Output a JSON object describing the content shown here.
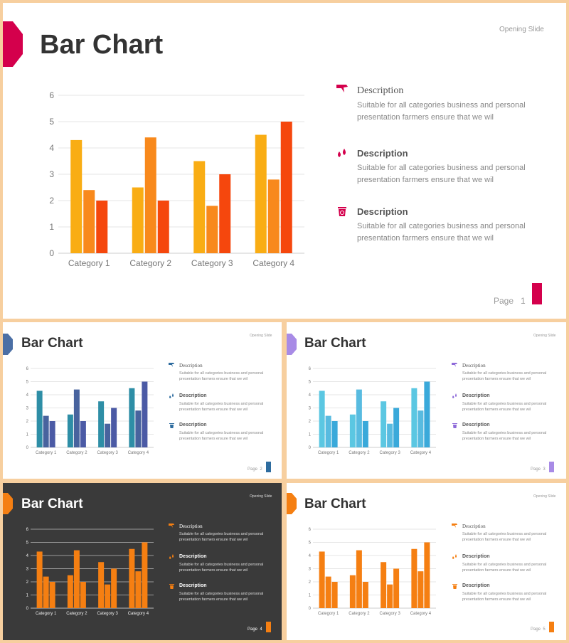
{
  "chart_data": [
    {
      "type": "bar",
      "categories": [
        "Category 1",
        "Category 2",
        "Category 3",
        "Category 4"
      ],
      "series": [
        {
          "values": [
            4.3,
            2.5,
            3.5,
            4.5
          ]
        },
        {
          "values": [
            2.4,
            4.4,
            1.8,
            2.8
          ]
        },
        {
          "values": [
            2.0,
            2.0,
            3.0,
            5.0
          ]
        }
      ],
      "yticks": [
        "0",
        "1",
        "2",
        "3",
        "4",
        "5",
        "6"
      ],
      "ylim": [
        0,
        6
      ],
      "grid": true,
      "colors": [
        "#f9ad14",
        "#f8891c",
        "#f5470d"
      ]
    },
    {
      "type": "bar",
      "categories": [
        "Category 1",
        "Category 2",
        "Category 3",
        "Category 4"
      ],
      "series": [
        {
          "values": [
            4.3,
            2.5,
            3.5,
            4.5
          ]
        },
        {
          "values": [
            2.4,
            4.4,
            1.8,
            2.8
          ]
        },
        {
          "values": [
            2.0,
            2.0,
            3.0,
            5.0
          ]
        }
      ],
      "yticks": [
        "0",
        "1",
        "2",
        "3",
        "4",
        "5",
        "6"
      ],
      "ylim": [
        0,
        6
      ],
      "grid": true,
      "colors": [
        "#2e8ea6",
        "#48639e",
        "#4b5aa5"
      ]
    },
    {
      "type": "bar",
      "categories": [
        "Category 1",
        "Category 2",
        "Category 3",
        "Category 4"
      ],
      "series": [
        {
          "values": [
            4.3,
            2.5,
            3.5,
            4.5
          ]
        },
        {
          "values": [
            2.4,
            4.4,
            1.8,
            2.8
          ]
        },
        {
          "values": [
            2.0,
            2.0,
            3.0,
            5.0
          ]
        }
      ],
      "yticks": [
        "0",
        "1",
        "2",
        "3",
        "4",
        "5",
        "6"
      ],
      "ylim": [
        0,
        6
      ],
      "grid": true,
      "colors": [
        "#5bc7e2",
        "#58bbe0",
        "#3aa9da"
      ]
    },
    {
      "type": "bar",
      "categories": [
        "Category 1",
        "Category 2",
        "Category 3",
        "Category 4"
      ],
      "series": [
        {
          "values": [
            4.3,
            2.5,
            3.5,
            4.5
          ]
        },
        {
          "values": [
            2.4,
            4.4,
            1.8,
            2.8
          ]
        },
        {
          "values": [
            2.0,
            2.0,
            3.0,
            5.0
          ]
        }
      ],
      "yticks": [
        "0",
        "1",
        "2",
        "3",
        "4",
        "5",
        "6"
      ],
      "ylim": [
        0,
        6
      ],
      "grid": true,
      "colors": [
        "#f57f12",
        "#f57f12",
        "#f57f12"
      ]
    },
    {
      "type": "bar",
      "categories": [
        "Category 1",
        "Category 2",
        "Category 3",
        "Category 4"
      ],
      "series": [
        {
          "values": [
            4.3,
            2.5,
            3.5,
            4.5
          ]
        },
        {
          "values": [
            2.4,
            4.4,
            1.8,
            2.8
          ]
        },
        {
          "values": [
            2.0,
            2.0,
            3.0,
            5.0
          ]
        }
      ],
      "yticks": [
        "0",
        "1",
        "2",
        "3",
        "4",
        "5",
        "6"
      ],
      "ylim": [
        0,
        6
      ],
      "grid": true,
      "colors": [
        "#f57f12",
        "#f57f12",
        "#f57f12"
      ]
    }
  ],
  "slides": [
    {
      "title": "Bar Chart",
      "opening": "Opening Slide",
      "page_word": "Page",
      "page_num": "1",
      "accent": "#d4004c",
      "descriptions": [
        {
          "icon": "speech-flag-icon",
          "heading": "Description",
          "text1": "Suitable for all categories business and personal",
          "text2": "presentation farmers ensure that we wil"
        },
        {
          "icon": "droplets-icon",
          "heading": "Description",
          "text1": "Suitable for all categories business and personal",
          "text2": "presentation farmers ensure that we wil"
        },
        {
          "icon": "recycle-bin-icon",
          "heading": "Description",
          "text1": "Suitable for all categories business and personal",
          "text2": "presentation farmers ensure that we wil"
        }
      ]
    },
    {
      "title": "Bar Chart",
      "opening": "Opening Slide",
      "page_word": "Page",
      "page_num": "2",
      "accent": "#2e6c9f",
      "tab": "#4b6fa5",
      "descriptions": [
        {
          "icon": "speech-flag-icon",
          "heading": "Description",
          "text1": "Suitable for all categories business and personal",
          "text2": "presentation farmers ensure that we wil"
        },
        {
          "icon": "droplets-icon",
          "heading": "Description",
          "text1": "Suitable for all categories business and personal",
          "text2": "presentation farmers ensure that we wil"
        },
        {
          "icon": "recycle-bin-icon",
          "heading": "Description",
          "text1": "Suitable for all categories business and personal",
          "text2": "presentation farmers ensure that we wil"
        }
      ]
    },
    {
      "title": "Bar Chart",
      "opening": "Opening Slide",
      "page_word": "Page",
      "page_num": "3",
      "accent": "#a88be6",
      "descriptions": [
        {
          "icon": "speech-flag-icon",
          "heading": "Description",
          "text1": "Suitable for all categories business and personal",
          "text2": "presentation farmers ensure that we wil"
        },
        {
          "icon": "droplets-icon",
          "heading": "Description",
          "text1": "Suitable for all categories business and personal",
          "text2": "presentation farmers ensure that we wil"
        },
        {
          "icon": "recycle-bin-icon",
          "heading": "Description",
          "text1": "Suitable for all categories business and personal",
          "text2": "presentation farmers ensure that we wil"
        }
      ]
    },
    {
      "title": "Bar Chart",
      "opening": "Opening Slide",
      "page_word": "Page",
      "page_num": "4",
      "accent": "#f57f12",
      "descriptions": [
        {
          "icon": "speech-flag-icon",
          "heading": "Description",
          "text1": "Suitable for all categories business and personal",
          "text2": "presentation farmers ensure that we wil"
        },
        {
          "icon": "droplets-icon",
          "heading": "Description",
          "text1": "Suitable for all categories business and personal",
          "text2": "presentation farmers ensure that we wil"
        },
        {
          "icon": "recycle-bin-icon",
          "heading": "Description",
          "text1": "Suitable for all categories business and personal",
          "text2": "presentation farmers ensure that we wil"
        }
      ]
    },
    {
      "title": "Bar Chart",
      "opening": "Opening Slide",
      "page_word": "Page",
      "page_num": "5",
      "accent": "#f57f12",
      "descriptions": [
        {
          "icon": "speech-flag-icon",
          "heading": "Description",
          "text1": "Suitable for all categories business and personal",
          "text2": "presentation farmers ensure that we wil"
        },
        {
          "icon": "droplets-icon",
          "heading": "Description",
          "text1": "Suitable for all categories business and personal",
          "text2": "presentation farmers ensure that we wil"
        },
        {
          "icon": "recycle-bin-icon",
          "heading": "Description",
          "text1": "Suitable for all categories business and personal",
          "text2": "presentation farmers ensure that we wil"
        }
      ]
    }
  ]
}
